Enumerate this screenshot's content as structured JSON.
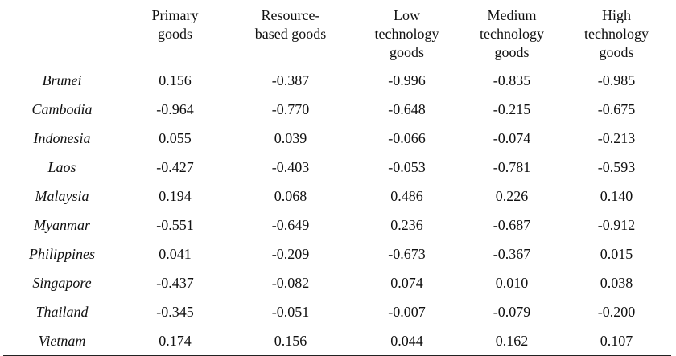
{
  "table": {
    "columns": [
      "",
      "Primary goods",
      "Resource-based goods",
      "Low technology goods",
      "Medium technology goods",
      "High technology goods"
    ],
    "header_lines": [
      [],
      [
        "Primary",
        "goods"
      ],
      [
        "Resource-",
        "based goods"
      ],
      [
        "Low",
        "technology",
        "goods"
      ],
      [
        "Medium",
        "technology",
        "goods"
      ],
      [
        "High",
        "technology",
        "goods"
      ]
    ],
    "rows": [
      {
        "country": "Brunei",
        "values": [
          "0.156",
          "-0.387",
          "-0.996",
          "-0.835",
          "-0.985"
        ]
      },
      {
        "country": "Cambodia",
        "values": [
          "-0.964",
          "-0.770",
          "-0.648",
          "-0.215",
          "-0.675"
        ]
      },
      {
        "country": "Indonesia",
        "values": [
          "0.055",
          "0.039",
          "-0.066",
          "-0.074",
          "-0.213"
        ]
      },
      {
        "country": "Laos",
        "values": [
          "-0.427",
          "-0.403",
          "-0.053",
          "-0.781",
          "-0.593"
        ]
      },
      {
        "country": "Malaysia",
        "values": [
          "0.194",
          "0.068",
          "0.486",
          "0.226",
          "0.140"
        ]
      },
      {
        "country": "Myanmar",
        "values": [
          "-0.551",
          "-0.649",
          "0.236",
          "-0.687",
          "-0.912"
        ]
      },
      {
        "country": "Philippines",
        "values": [
          "0.041",
          "-0.209",
          "-0.673",
          "-0.367",
          "0.015"
        ]
      },
      {
        "country": "Singapore",
        "values": [
          "-0.437",
          "-0.082",
          "0.074",
          "0.010",
          "0.038"
        ]
      },
      {
        "country": "Thailand",
        "values": [
          "-0.345",
          "-0.051",
          "-0.007",
          "-0.079",
          "-0.200"
        ]
      },
      {
        "country": "Vietnam",
        "values": [
          "0.174",
          "0.156",
          "0.044",
          "0.162",
          "0.107"
        ]
      }
    ]
  }
}
